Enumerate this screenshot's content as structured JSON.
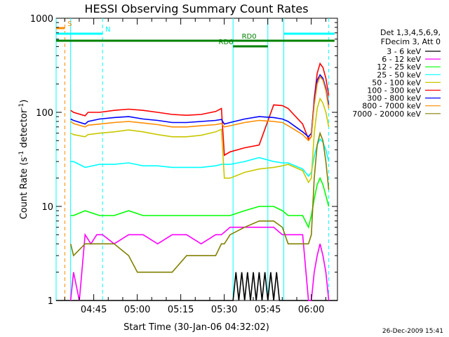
{
  "chart_data": {
    "type": "line",
    "title": "HESSI Observing Summary Count Rates",
    "xlabel": "Start Time (30-Jan-06 04:32:02)",
    "ylabel_parts": [
      "Count Rate (s",
      "-1",
      " detector",
      "-1",
      ")"
    ],
    "y_log": true,
    "ylim": [
      1,
      1000
    ],
    "y_ticks": [
      {
        "value": 1,
        "label": "1"
      },
      {
        "value": 10,
        "label": "10"
      },
      {
        "value": 100,
        "label": "100"
      },
      {
        "value": 1000,
        "label": "1000"
      }
    ],
    "xlim_minutes": [
      0,
      97
    ],
    "x_ticks": [
      {
        "minute": 12.97,
        "label": "04:45"
      },
      {
        "minute": 27.97,
        "label": "05:00"
      },
      {
        "minute": 42.97,
        "label": "05:15"
      },
      {
        "minute": 57.97,
        "label": "05:30"
      },
      {
        "minute": 72.97,
        "label": "05:45"
      },
      {
        "minute": 87.97,
        "label": "06:00"
      }
    ],
    "legend_header": [
      "Det 1,3,4,5,6,9,",
      "FDecim 3, Att 0"
    ],
    "legend_placement": "right",
    "series": [
      {
        "name": "3 - 6 keV",
        "color": "#000000",
        "x": [
          0,
          61,
          62,
          63,
          64,
          65,
          66,
          67,
          68,
          69,
          70,
          71,
          72,
          73,
          74,
          75,
          76,
          77,
          97
        ],
        "y": [
          1,
          1,
          2,
          1,
          2,
          1,
          2,
          1,
          2,
          1,
          2,
          1,
          2,
          1,
          2,
          1,
          2,
          1,
          1
        ]
      },
      {
        "name": "6 - 12 keV",
        "color": "#ff00ff",
        "x": [
          5,
          6,
          8,
          10,
          12,
          14,
          16,
          20,
          25,
          30,
          35,
          40,
          45,
          50,
          55,
          57,
          60,
          65,
          70,
          75,
          78,
          80,
          85,
          87,
          88,
          89,
          90,
          91,
          92,
          93,
          94
        ],
        "y": [
          1,
          2,
          1,
          5,
          4,
          5,
          5,
          4,
          5,
          5,
          4,
          5,
          5,
          4,
          5,
          5,
          6,
          6,
          6,
          6,
          5,
          5,
          5,
          1,
          1,
          2,
          3,
          4,
          3,
          2,
          1
        ]
      },
      {
        "name": "12 - 25 keV",
        "color": "#00ff00",
        "x": [
          5,
          6,
          10,
          15,
          20,
          25,
          30,
          35,
          40,
          45,
          50,
          55,
          57,
          58,
          60,
          65,
          70,
          75,
          78,
          80,
          85,
          87,
          88,
          89,
          90,
          91,
          92,
          93,
          94
        ],
        "y": [
          8,
          8,
          9,
          8,
          8,
          9,
          8,
          8,
          8,
          8,
          8,
          8,
          8,
          8,
          8,
          9,
          10,
          10,
          9,
          8,
          8,
          6,
          8,
          12,
          17,
          20,
          17,
          13,
          10
        ]
      },
      {
        "name": "25 - 50 keV",
        "color": "#00ffff",
        "x": [
          5,
          6,
          10,
          15,
          20,
          25,
          30,
          35,
          40,
          45,
          50,
          55,
          57,
          58,
          60,
          65,
          70,
          75,
          78,
          80,
          85,
          87,
          88,
          89,
          90,
          91,
          92,
          93,
          94
        ],
        "y": [
          30,
          30,
          26,
          28,
          28,
          29,
          27,
          27,
          26,
          26,
          26,
          27,
          28,
          28,
          28,
          30,
          33,
          30,
          29,
          29,
          25,
          21,
          23,
          34,
          45,
          52,
          48,
          40,
          30
        ]
      },
      {
        "name": "50 - 100 keV",
        "color": "#c8c800",
        "x": [
          5,
          6,
          10,
          11,
          15,
          20,
          25,
          30,
          35,
          40,
          45,
          50,
          55,
          57,
          58,
          60,
          65,
          70,
          75,
          78,
          80,
          85,
          87,
          88,
          89,
          90,
          91,
          92,
          93,
          94
        ],
        "y": [
          60,
          58,
          55,
          58,
          60,
          62,
          65,
          62,
          58,
          55,
          55,
          57,
          62,
          66,
          20,
          20,
          23,
          25,
          26,
          27,
          28,
          24,
          18,
          20,
          60,
          110,
          140,
          125,
          100,
          70
        ]
      },
      {
        "name": "100 - 300 keV",
        "color": "#ff0000",
        "x": [
          5,
          6,
          10,
          11,
          15,
          20,
          25,
          30,
          35,
          40,
          45,
          50,
          55,
          57,
          58,
          60,
          65,
          70,
          75,
          78,
          80,
          85,
          87,
          88,
          89,
          90,
          91,
          92,
          93,
          94
        ],
        "y": [
          105,
          100,
          92,
          100,
          100,
          105,
          108,
          105,
          100,
          95,
          93,
          95,
          102,
          110,
          35,
          38,
          42,
          45,
          120,
          118,
          110,
          75,
          52,
          55,
          140,
          260,
          330,
          300,
          230,
          150
        ]
      },
      {
        "name": "300 - 800 keV",
        "color": "#0000ff",
        "x": [
          5,
          6,
          10,
          11,
          15,
          20,
          25,
          30,
          35,
          40,
          45,
          50,
          55,
          57,
          58,
          60,
          65,
          70,
          75,
          78,
          80,
          85,
          87,
          88,
          89,
          90,
          91,
          92,
          93,
          94
        ],
        "y": [
          85,
          82,
          75,
          80,
          85,
          88,
          90,
          85,
          82,
          78,
          78,
          80,
          82,
          84,
          75,
          78,
          85,
          90,
          88,
          85,
          80,
          62,
          55,
          60,
          130,
          220,
          250,
          230,
          180,
          120
        ]
      },
      {
        "name": "800 - 7000 keV",
        "color": "#ff8c00",
        "x": [
          5,
          6,
          10,
          11,
          15,
          20,
          25,
          30,
          35,
          40,
          45,
          50,
          55,
          57,
          58,
          60,
          65,
          70,
          75,
          78,
          80,
          85,
          87,
          88,
          89,
          90,
          91,
          92,
          93,
          94
        ],
        "y": [
          80,
          76,
          70,
          73,
          75,
          78,
          80,
          77,
          74,
          70,
          70,
          72,
          74,
          76,
          70,
          72,
          78,
          82,
          80,
          78,
          72,
          58,
          50,
          55,
          120,
          200,
          240,
          220,
          170,
          110
        ]
      },
      {
        "name": "7000 - 20000 keV",
        "color": "#808000",
        "x": [
          5,
          6,
          10,
          15,
          20,
          25,
          28,
          30,
          35,
          40,
          45,
          50,
          55,
          57,
          58,
          60,
          65,
          70,
          75,
          78,
          80,
          85,
          87,
          88,
          89,
          90,
          91,
          92,
          93,
          94
        ],
        "y": [
          4,
          3,
          4,
          4,
          4,
          3,
          2,
          2,
          2,
          2,
          3,
          3,
          3,
          4,
          4,
          5,
          6,
          7,
          7,
          6,
          4,
          4,
          4,
          5,
          20,
          45,
          60,
          50,
          30,
          15
        ]
      }
    ],
    "vlines": [
      {
        "minute": 0,
        "color": "#00ffff",
        "style": "solid"
      },
      {
        "minute": 3,
        "color": "#ff8c00",
        "style": "dashed"
      },
      {
        "minute": 5,
        "color": "#00ffff",
        "style": "solid"
      },
      {
        "minute": 16,
        "color": "#00ffff",
        "style": "dashed"
      },
      {
        "minute": 61,
        "color": "#00ffff",
        "style": "solid"
      },
      {
        "minute": 73,
        "color": "#00ffff",
        "style": "solid"
      },
      {
        "minute": 78.5,
        "color": "#00ffff",
        "style": "solid"
      },
      {
        "minute": 94,
        "color": "#00ffff",
        "style": "dashed"
      }
    ],
    "bars": [
      {
        "label": "S",
        "color": "#ff8c00",
        "start": 0,
        "end": 3,
        "y": 1
      },
      {
        "label": "N",
        "color": "#00ffff",
        "start": 0,
        "end": 16,
        "y": 2
      },
      {
        "label": "N",
        "color": "#00ffff",
        "start": 78.5,
        "end": 96,
        "y": 2,
        "hidden_label": true
      },
      {
        "label": "RD0",
        "color": "#008000",
        "start": 0,
        "end": 96,
        "y": 3,
        "label_minute": 64
      },
      {
        "label": "RD6",
        "color": "#008000",
        "start": 61,
        "end": 73,
        "y": 4,
        "label_minute": 56
      }
    ],
    "date_stamp": "26-Dec-2009 15:41"
  }
}
